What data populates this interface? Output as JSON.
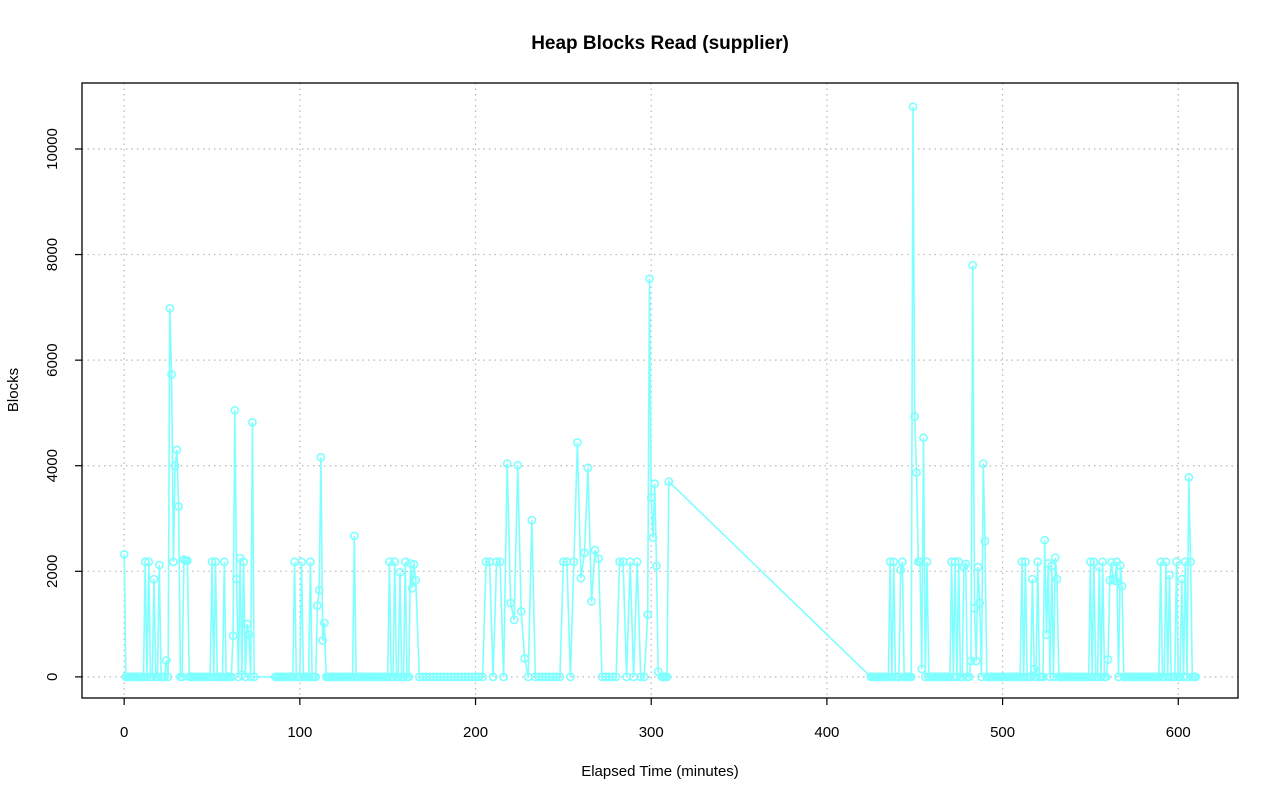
{
  "chart_data": {
    "type": "line",
    "title": "Heap Blocks Read (supplier)",
    "xlabel": "Elapsed Time (minutes)",
    "ylabel": "Blocks",
    "xlim": [
      -24,
      634
    ],
    "ylim": [
      -400,
      11250
    ],
    "xticks": [
      0,
      100,
      200,
      300,
      400,
      500,
      600
    ],
    "yticks": [
      0,
      2000,
      4000,
      6000,
      8000,
      10000
    ],
    "grid": true,
    "grid_style": "dotted",
    "legend": "none",
    "series_color": "#7fffff",
    "marker": "open-circle",
    "series": [
      {
        "x": [
          0,
          1,
          2,
          3,
          4,
          5,
          6,
          7,
          8,
          9,
          10,
          11,
          12,
          13,
          14,
          15,
          16,
          17,
          18,
          19,
          20,
          21,
          22,
          23,
          24,
          25,
          26,
          27,
          28,
          29,
          30,
          31,
          32,
          33,
          34,
          35,
          36,
          37,
          38,
          39,
          40,
          41,
          42,
          43,
          44,
          45,
          46,
          47,
          48,
          49,
          50,
          51,
          52,
          53,
          54,
          55,
          56,
          57,
          58,
          59,
          60,
          61,
          62,
          63,
          64,
          65,
          66,
          67,
          68,
          69,
          70,
          71,
          72,
          73,
          74,
          86,
          87,
          88,
          89,
          90,
          91,
          92,
          93,
          94,
          95,
          96,
          97,
          98,
          99,
          100,
          101,
          102,
          103,
          104,
          105,
          106,
          107,
          108,
          109,
          110,
          111,
          112,
          113,
          114,
          115,
          116,
          117,
          118,
          119,
          120,
          121,
          122,
          123,
          124,
          125,
          126,
          127,
          128,
          129,
          130,
          131,
          132,
          133,
          134,
          135,
          136,
          137,
          138,
          139,
          140,
          141,
          142,
          143,
          144,
          145,
          146,
          147,
          148,
          149,
          150,
          151,
          152,
          153,
          154,
          155,
          156,
          157,
          158,
          159,
          160,
          161,
          162,
          163,
          164,
          165,
          166,
          168,
          170,
          172,
          174,
          176,
          178,
          180,
          182,
          184,
          186,
          188,
          190,
          192,
          194,
          196,
          198,
          200,
          202,
          204,
          206,
          208,
          210,
          212,
          214,
          216,
          218,
          220,
          222,
          224,
          226,
          228,
          230,
          232,
          234,
          236,
          238,
          240,
          242,
          244,
          246,
          248,
          250,
          252,
          254,
          256,
          258,
          260,
          262,
          264,
          266,
          268,
          270,
          272,
          274,
          276,
          278,
          280,
          282,
          284,
          286,
          288,
          290,
          292,
          294,
          296,
          298,
          299,
          300,
          301,
          302,
          303,
          304,
          306,
          307,
          308,
          309,
          310,
          425,
          426,
          427,
          428,
          429,
          430,
          431,
          432,
          433,
          434,
          435,
          436,
          437,
          438,
          439,
          440,
          441,
          442,
          443,
          444,
          445,
          446,
          447,
          448,
          449,
          450,
          451,
          452,
          453,
          454,
          455,
          456,
          457,
          458,
          459,
          460,
          461,
          462,
          463,
          464,
          465,
          466,
          467,
          468,
          469,
          470,
          471,
          472,
          473,
          474,
          475,
          476,
          477,
          478,
          479,
          480,
          481,
          482,
          483,
          484,
          485,
          486,
          487,
          488,
          489,
          490,
          491,
          492,
          493,
          494,
          495,
          496,
          497,
          498,
          499,
          500,
          501,
          502,
          503,
          504,
          505,
          506,
          507,
          508,
          509,
          510,
          511,
          512,
          513,
          514,
          515,
          516,
          517,
          518,
          519,
          520,
          521,
          522,
          523,
          524,
          525,
          526,
          527,
          528,
          529,
          530,
          531,
          532,
          533,
          534,
          535,
          536,
          537,
          538,
          539,
          540,
          541,
          542,
          543,
          544,
          545,
          546,
          547,
          548,
          549,
          550,
          551,
          552,
          553,
          554,
          555,
          556,
          557,
          558,
          559,
          560,
          561,
          562,
          563,
          564,
          565,
          566,
          567,
          568,
          569,
          570,
          571,
          572,
          573,
          574,
          575,
          576,
          577,
          578,
          579,
          580,
          581,
          582,
          583,
          584,
          585,
          586,
          587,
          588,
          589,
          590,
          591,
          592,
          593,
          594,
          595,
          596,
          597,
          598,
          599,
          600,
          601,
          602,
          603,
          604,
          605,
          606,
          607,
          608,
          609,
          610
        ],
        "y": [
          2320,
          0,
          0,
          0,
          0,
          0,
          0,
          0,
          0,
          0,
          0,
          0,
          2180,
          0,
          2180,
          0,
          0,
          1850,
          0,
          0,
          2120,
          0,
          0,
          0,
          310,
          0,
          6980,
          5730,
          2180,
          4000,
          4300,
          3230,
          0,
          0,
          2220,
          2200,
          2200,
          0,
          0,
          0,
          0,
          0,
          0,
          0,
          0,
          0,
          0,
          0,
          0,
          0,
          2180,
          0,
          2180,
          0,
          0,
          0,
          0,
          2180,
          0,
          0,
          0,
          0,
          780,
          5050,
          1850,
          0,
          2250,
          40,
          2180,
          0,
          1000,
          800,
          0,
          4820,
          0,
          0,
          0,
          0,
          0,
          0,
          0,
          0,
          0,
          0,
          0,
          0,
          2180,
          0,
          0,
          0,
          2180,
          0,
          0,
          0,
          0,
          2180,
          0,
          0,
          0,
          1350,
          1640,
          4160,
          690,
          1020,
          0,
          0,
          0,
          0,
          0,
          0,
          0,
          0,
          0,
          0,
          0,
          0,
          0,
          0,
          0,
          0,
          2670,
          0,
          0,
          0,
          0,
          0,
          0,
          0,
          0,
          0,
          0,
          0,
          0,
          0,
          0,
          0,
          0,
          0,
          0,
          0,
          2180,
          0,
          0,
          2180,
          0,
          0,
          1980,
          0,
          0,
          2180,
          0,
          0,
          2150,
          1680,
          2130,
          1830,
          0,
          0,
          0,
          0,
          0,
          0,
          0,
          0,
          0,
          0,
          0,
          0,
          0,
          0,
          0,
          0,
          0,
          0,
          0,
          2180,
          2180,
          0,
          2180,
          2180,
          0,
          4040,
          1400,
          1080,
          4010,
          1240,
          350,
          0,
          2970,
          0,
          0,
          0,
          0,
          0,
          0,
          0,
          0,
          2180,
          2180,
          0,
          2180,
          4440,
          1870,
          2350,
          3960,
          1430,
          2400,
          2240,
          0,
          0,
          0,
          0,
          0,
          2180,
          2180,
          0,
          2180,
          0,
          2180,
          0,
          0,
          1180,
          7540,
          3400,
          2640,
          3660,
          2100,
          100,
          0,
          0,
          0,
          0,
          3700,
          0,
          0,
          0,
          0,
          0,
          0,
          0,
          0,
          0,
          0,
          0,
          2180,
          0,
          2180,
          0,
          0,
          0,
          2030,
          2180,
          0,
          0,
          0,
          0,
          0,
          10800,
          4930,
          3870,
          2180,
          2180,
          150,
          4530,
          0,
          2180,
          0,
          0,
          0,
          0,
          0,
          0,
          0,
          0,
          0,
          0,
          0,
          0,
          0,
          2180,
          0,
          2180,
          0,
          2180,
          0,
          0,
          2080,
          2140,
          0,
          0,
          300,
          7800,
          1300,
          300,
          2080,
          1400,
          0,
          4040,
          2570,
          0,
          0,
          0,
          0,
          0,
          0,
          0,
          0,
          0,
          0,
          0,
          0,
          0,
          0,
          0,
          0,
          0,
          0,
          0,
          0,
          2180,
          0,
          2180,
          0,
          0,
          0,
          1850,
          150,
          0,
          2180,
          0,
          0,
          0,
          2590,
          800,
          2150,
          0,
          2100,
          0,
          2260,
          1850,
          0,
          0,
          0,
          0,
          0,
          0,
          0,
          0,
          0,
          0,
          0,
          0,
          0,
          0,
          0,
          0,
          0,
          0,
          2180,
          0,
          2180,
          0,
          0,
          2080,
          0,
          2180,
          0,
          0,
          330,
          1830,
          2170,
          1850,
          1820,
          2180,
          0,
          2110,
          1720,
          0,
          0,
          0,
          0,
          0,
          0,
          0,
          0,
          0,
          0,
          0,
          0,
          0,
          0,
          0,
          0,
          0,
          0,
          0,
          0,
          0,
          2180,
          0,
          0,
          2180,
          0,
          1930,
          0,
          0,
          0,
          2180,
          0,
          0,
          1850,
          0,
          2180,
          0,
          3780,
          2180,
          0,
          0,
          0
        ]
      }
    ]
  }
}
